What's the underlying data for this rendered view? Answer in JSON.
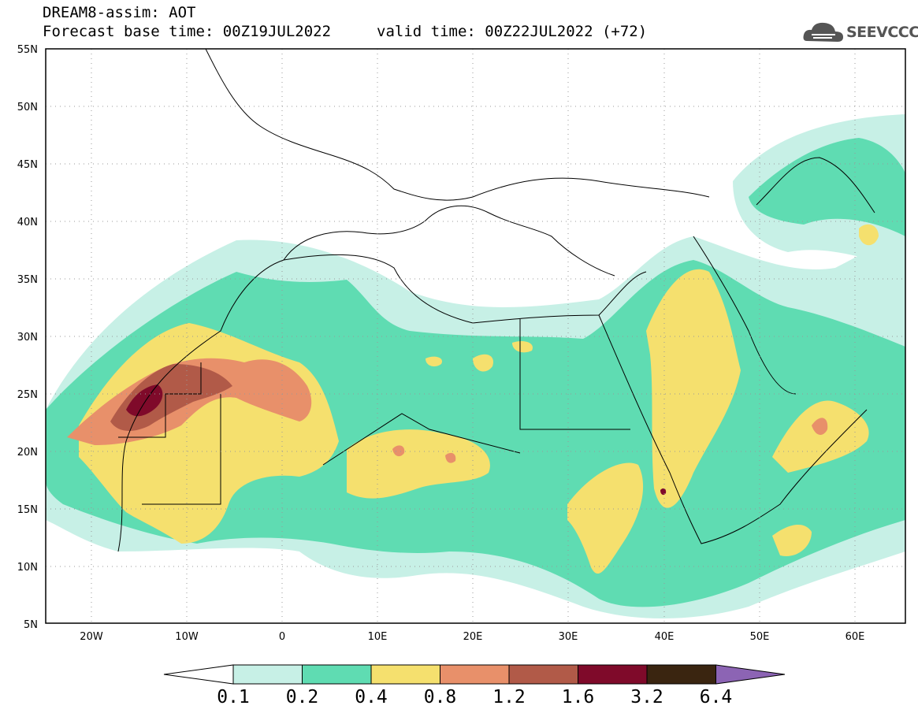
{
  "header": {
    "title": "DREAM8-assim: AOT",
    "base_time": "Forecast base time: 00Z19JUL2022",
    "valid_time": "valid time: 00Z22JUL2022 (+72)"
  },
  "logo": {
    "text": "SEEVCCC",
    "icon": "cloud-icon"
  },
  "map": {
    "projection": "lat-lon",
    "lon_range": [
      -25,
      65
    ],
    "lat_range": [
      5,
      55
    ],
    "lat_ticks": [
      "55N",
      "50N",
      "45N",
      "40N",
      "35N",
      "30N",
      "25N",
      "20N",
      "15N",
      "10N",
      "5N"
    ],
    "lon_ticks": [
      "20W",
      "10W",
      "0",
      "10E",
      "20E",
      "30E",
      "40E",
      "50E",
      "60E"
    ],
    "grid": "dotted"
  },
  "colorbar": {
    "labels": [
      "0.1",
      "0.2",
      "0.4",
      "0.8",
      "1.2",
      "1.6",
      "3.2",
      "6.4"
    ],
    "colors": [
      "#ffffff",
      "#c7f0e6",
      "#5fdcb2",
      "#f5e06e",
      "#e8906a",
      "#b15a48",
      "#7f0a2a",
      "#3a2510",
      "#8c64b4"
    ]
  }
}
